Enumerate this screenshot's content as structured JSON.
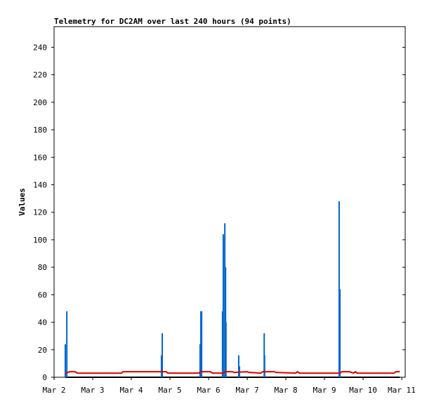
{
  "chart_data": {
    "type": "line",
    "title": "Telemetry for DC2AM over last 240 hours (94 points)",
    "y_label": "Values",
    "xlim": [
      2,
      11.09
    ],
    "xticks": [
      {
        "value": 2,
        "label": "Mar 2"
      },
      {
        "value": 3,
        "label": "Mar 3"
      },
      {
        "value": 4,
        "label": "Mar 4"
      },
      {
        "value": 5,
        "label": "Mar 5"
      },
      {
        "value": 6,
        "label": "Mar 6"
      },
      {
        "value": 7,
        "label": "Mar 7"
      },
      {
        "value": 8,
        "label": "Mar 8"
      },
      {
        "value": 9,
        "label": "Mar 9"
      },
      {
        "value": 10,
        "label": "Mar 10"
      },
      {
        "value": 11,
        "label": "Mar 11"
      }
    ],
    "ylim": [
      0,
      255
    ],
    "yticks": [
      0,
      20,
      40,
      60,
      80,
      100,
      120,
      140,
      160,
      180,
      200,
      220,
      240
    ],
    "grid": false,
    "series": [
      {
        "color": "#000000",
        "style": "lines",
        "x": [
          2.29,
          10.95
        ],
        "values": [
          0,
          0
        ]
      },
      {
        "color": "#0066cc",
        "style": "impulses",
        "x": [
          2.29,
          2.33,
          4.78,
          4.8,
          5.78,
          5.8,
          5.82,
          6.36,
          6.38,
          6.42,
          6.44,
          6.45,
          6.78,
          6.8,
          7.44,
          7.45,
          9.38,
          9.4
        ],
        "values": [
          24,
          48,
          16,
          32,
          24,
          48,
          48,
          48,
          104,
          112,
          80,
          40,
          16,
          8,
          32,
          16,
          128,
          64
        ]
      },
      {
        "color": "#e00000",
        "style": "lines",
        "x": [
          2.29,
          2.4,
          2.55,
          2.6,
          3.75,
          3.78,
          4.9,
          4.95,
          5.75,
          5.78,
          6.05,
          6.1,
          6.38,
          6.42,
          6.62,
          6.66,
          7.0,
          7.05,
          7.35,
          7.4,
          7.7,
          7.75,
          8.25,
          8.3,
          8.35,
          8.4,
          9.4,
          9.45,
          9.65,
          9.75,
          9.8,
          9.85,
          10.8,
          10.85,
          10.95
        ],
        "values": [
          3,
          4,
          4,
          3,
          3,
          4,
          4,
          3,
          3,
          4,
          4,
          3,
          3,
          4,
          4,
          3.5,
          4,
          3.5,
          3,
          4,
          4,
          3.5,
          3,
          4,
          3,
          3,
          3,
          4,
          4,
          3,
          4,
          3,
          3,
          4,
          4
        ]
      }
    ]
  }
}
